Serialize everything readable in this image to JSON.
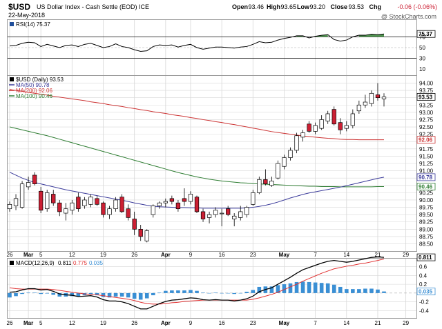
{
  "header": {
    "symbol": "$USD",
    "name": "US Dollar Index - Cash Settle (EOD) ICE",
    "date": "22-May-2018",
    "open_label": "Open",
    "open": "93.46",
    "high_label": "High",
    "high": "93.65",
    "low_label": "Low",
    "low": "93.20",
    "close_label": "Close",
    "close": "93.53",
    "chg_label": "Chg",
    "chg": "-0.06 (-0.06%)",
    "watermark": "@ StockCharts.com"
  },
  "colors": {
    "up": "#ffffff",
    "down": "#cc1f33",
    "ma50": "#3a3a9a",
    "ma200": "#cc3333",
    "ma100": "#2e7d32",
    "rsi_fill": "#3d8a3d",
    "macd_line": "#000000",
    "signal_line": "#e03030",
    "histogram": "#3a8fd4",
    "grid": "#d8d8d8"
  },
  "chart_data": {
    "type": "candlestick",
    "x_tick_labels": [
      "26",
      "Mar",
      "5",
      "12",
      "19",
      "26",
      "Apr",
      "9",
      "16",
      "23",
      "May",
      "7",
      "14",
      "21",
      "29"
    ],
    "bold_tick_labels": [
      "Mar",
      "Apr",
      "May"
    ],
    "price_panel": {
      "legend": [
        {
          "label": "$USD (Daily) 93.53",
          "color": "#000000"
        },
        {
          "label": "MA(50) 90.78",
          "color": "#3a3a9a"
        },
        {
          "label": "MA(200) 92.06",
          "color": "#cc3333"
        },
        {
          "label": "MA(100) 90.46",
          "color": "#2e7d32"
        }
      ],
      "ylim": [
        88.3,
        94.2
      ],
      "y_ticks": [
        "94.00",
        "93.75",
        "93.50",
        "93.25",
        "93.00",
        "92.75",
        "92.50",
        "92.25",
        "92.00",
        "91.75",
        "91.50",
        "91.25",
        "91.00",
        "90.75",
        "90.50",
        "90.25",
        "90.00",
        "89.75",
        "89.50",
        "89.25",
        "89.00",
        "88.75",
        "88.50"
      ],
      "last_labels": [
        {
          "value": 93.53,
          "text": "93.53",
          "color": "#000000"
        },
        {
          "value": 92.06,
          "text": "92.06",
          "color": "#cc3333"
        },
        {
          "value": 90.78,
          "text": "90.78",
          "color": "#3a3a9a"
        },
        {
          "value": 90.46,
          "text": "90.46",
          "color": "#2e7d32"
        }
      ],
      "candles": [
        {
          "o": 89.7,
          "h": 89.95,
          "l": 89.6,
          "c": 89.85
        },
        {
          "o": 89.8,
          "h": 90.2,
          "l": 89.65,
          "c": 90.05
        },
        {
          "o": 89.75,
          "h": 90.65,
          "l": 89.7,
          "c": 90.55
        },
        {
          "o": 90.45,
          "h": 90.8,
          "l": 90.35,
          "c": 90.6
        },
        {
          "o": 90.85,
          "h": 90.95,
          "l": 90.5,
          "c": 90.55
        },
        {
          "o": 90.3,
          "h": 90.45,
          "l": 89.55,
          "c": 89.65
        },
        {
          "o": 89.7,
          "h": 90.35,
          "l": 89.6,
          "c": 90.25
        },
        {
          "o": 90.2,
          "h": 90.35,
          "l": 89.8,
          "c": 89.9
        },
        {
          "o": 89.9,
          "h": 90.0,
          "l": 89.45,
          "c": 89.6
        },
        {
          "o": 89.55,
          "h": 89.9,
          "l": 89.3,
          "c": 89.7
        },
        {
          "o": 89.65,
          "h": 90.0,
          "l": 89.5,
          "c": 89.9
        },
        {
          "o": 90.1,
          "h": 90.25,
          "l": 89.6,
          "c": 89.7
        },
        {
          "o": 89.8,
          "h": 90.1,
          "l": 89.7,
          "c": 90.0
        },
        {
          "o": 89.85,
          "h": 90.2,
          "l": 89.75,
          "c": 90.1
        },
        {
          "o": 90.05,
          "h": 90.15,
          "l": 89.8,
          "c": 89.85
        },
        {
          "o": 89.9,
          "h": 89.95,
          "l": 89.4,
          "c": 89.5
        },
        {
          "o": 89.5,
          "h": 89.8,
          "l": 89.35,
          "c": 89.7
        },
        {
          "o": 89.7,
          "h": 90.1,
          "l": 89.6,
          "c": 90.0
        },
        {
          "o": 90.1,
          "h": 90.2,
          "l": 89.55,
          "c": 89.6
        },
        {
          "o": 89.7,
          "h": 89.85,
          "l": 89.3,
          "c": 89.4
        },
        {
          "o": 89.35,
          "h": 89.6,
          "l": 88.8,
          "c": 89.0
        },
        {
          "o": 89.0,
          "h": 89.15,
          "l": 88.6,
          "c": 88.75
        },
        {
          "o": 88.6,
          "h": 89.0,
          "l": 88.55,
          "c": 88.95
        },
        {
          "o": 89.5,
          "h": 89.85,
          "l": 89.4,
          "c": 89.8
        },
        {
          "o": 89.8,
          "h": 89.95,
          "l": 89.7,
          "c": 89.9
        },
        {
          "o": 89.9,
          "h": 90.05,
          "l": 89.75,
          "c": 89.95
        },
        {
          "o": 90.05,
          "h": 90.15,
          "l": 89.85,
          "c": 89.95
        },
        {
          "o": 89.9,
          "h": 90.0,
          "l": 89.6,
          "c": 89.7
        },
        {
          "o": 90.05,
          "h": 90.4,
          "l": 89.8,
          "c": 89.95
        },
        {
          "o": 89.95,
          "h": 90.3,
          "l": 89.85,
          "c": 90.2
        },
        {
          "o": 90.1,
          "h": 90.15,
          "l": 89.55,
          "c": 89.6
        },
        {
          "o": 89.6,
          "h": 89.7,
          "l": 89.25,
          "c": 89.35
        },
        {
          "o": 89.4,
          "h": 89.6,
          "l": 89.2,
          "c": 89.5
        },
        {
          "o": 89.5,
          "h": 89.75,
          "l": 89.4,
          "c": 89.65
        },
        {
          "o": 89.55,
          "h": 89.7,
          "l": 89.1,
          "c": 89.55
        },
        {
          "o": 89.7,
          "h": 89.8,
          "l": 89.45,
          "c": 89.5
        },
        {
          "o": 89.35,
          "h": 89.55,
          "l": 89.1,
          "c": 89.45
        },
        {
          "o": 89.4,
          "h": 89.8,
          "l": 89.3,
          "c": 89.6
        },
        {
          "o": 89.5,
          "h": 89.8,
          "l": 89.4,
          "c": 89.75
        },
        {
          "o": 89.85,
          "h": 90.35,
          "l": 89.8,
          "c": 90.25
        },
        {
          "o": 90.25,
          "h": 90.8,
          "l": 90.2,
          "c": 90.7
        },
        {
          "o": 90.7,
          "h": 91.05,
          "l": 90.5,
          "c": 90.55
        },
        {
          "o": 90.5,
          "h": 90.8,
          "l": 90.45,
          "c": 90.65
        },
        {
          "o": 90.75,
          "h": 91.35,
          "l": 90.7,
          "c": 91.25
        },
        {
          "o": 91.15,
          "h": 91.55,
          "l": 91.05,
          "c": 91.45
        },
        {
          "o": 91.45,
          "h": 91.8,
          "l": 91.35,
          "c": 91.7
        },
        {
          "o": 91.7,
          "h": 92.3,
          "l": 91.6,
          "c": 92.2
        },
        {
          "o": 92.15,
          "h": 92.4,
          "l": 92.0,
          "c": 92.3
        },
        {
          "o": 92.6,
          "h": 92.7,
          "l": 92.3,
          "c": 92.35
        },
        {
          "o": 92.35,
          "h": 92.65,
          "l": 92.25,
          "c": 92.55
        },
        {
          "o": 92.45,
          "h": 92.9,
          "l": 92.4,
          "c": 92.75
        },
        {
          "o": 92.7,
          "h": 93.05,
          "l": 92.6,
          "c": 92.95
        },
        {
          "o": 93.1,
          "h": 93.2,
          "l": 92.55,
          "c": 92.6
        },
        {
          "o": 92.65,
          "h": 92.8,
          "l": 92.25,
          "c": 92.4
        },
        {
          "o": 92.45,
          "h": 92.7,
          "l": 92.35,
          "c": 92.55
        },
        {
          "o": 92.55,
          "h": 93.1,
          "l": 92.45,
          "c": 92.95
        },
        {
          "o": 93.05,
          "h": 93.4,
          "l": 92.95,
          "c": 93.25
        },
        {
          "o": 93.25,
          "h": 93.6,
          "l": 93.15,
          "c": 93.35
        },
        {
          "o": 93.3,
          "h": 93.75,
          "l": 93.2,
          "c": 93.65
        },
        {
          "o": 93.6,
          "h": 94.0,
          "l": 93.4,
          "c": 93.5
        },
        {
          "o": 93.46,
          "h": 93.65,
          "l": 93.2,
          "c": 93.53
        }
      ],
      "ma200": [
        93.78,
        93.75,
        93.72,
        93.68,
        93.65,
        93.62,
        93.59,
        93.55,
        93.52,
        93.49,
        93.46,
        93.43,
        93.4,
        93.36,
        93.33,
        93.3,
        93.26,
        93.23,
        93.2,
        93.16,
        93.13,
        93.09,
        93.06,
        93.02,
        92.99,
        92.96,
        92.92,
        92.89,
        92.86,
        92.82,
        92.79,
        92.75,
        92.72,
        92.68,
        92.65,
        92.61,
        92.58,
        92.54,
        92.5,
        92.46,
        92.42,
        92.38,
        92.34,
        92.31,
        92.28,
        92.25,
        92.22,
        92.19,
        92.17,
        92.15,
        92.13,
        92.11,
        92.1,
        92.08,
        92.07,
        92.07,
        92.06,
        92.06,
        92.06,
        92.06,
        92.06
      ],
      "ma100": [
        92.5,
        92.45,
        92.4,
        92.35,
        92.3,
        92.25,
        92.2,
        92.14,
        92.08,
        92.02,
        91.96,
        91.9,
        91.84,
        91.78,
        91.72,
        91.66,
        91.6,
        91.54,
        91.48,
        91.42,
        91.36,
        91.3,
        91.24,
        91.18,
        91.12,
        91.06,
        91.0,
        90.94,
        90.89,
        90.84,
        90.79,
        90.75,
        90.71,
        90.68,
        90.65,
        90.63,
        90.61,
        90.59,
        90.58,
        90.56,
        90.55,
        90.54,
        90.53,
        90.52,
        90.51,
        90.5,
        90.49,
        90.48,
        90.47,
        90.47,
        90.46,
        90.46,
        90.46,
        90.45,
        90.45,
        90.45,
        90.45,
        90.45,
        90.45,
        90.46,
        90.46
      ],
      "ma50": [
        90.95,
        90.85,
        90.75,
        90.67,
        90.6,
        90.55,
        90.5,
        90.45,
        90.4,
        90.35,
        90.31,
        90.27,
        90.23,
        90.19,
        90.15,
        90.11,
        90.07,
        90.03,
        89.99,
        89.95,
        89.9,
        89.86,
        89.82,
        89.79,
        89.77,
        89.76,
        89.75,
        89.74,
        89.74,
        89.73,
        89.73,
        89.72,
        89.72,
        89.72,
        89.72,
        89.72,
        89.72,
        89.72,
        89.73,
        89.75,
        89.78,
        89.82,
        89.87,
        89.93,
        90.0,
        90.07,
        90.13,
        90.19,
        90.24,
        90.28,
        90.32,
        90.36,
        90.4,
        90.44,
        90.49,
        90.54,
        90.59,
        90.64,
        90.69,
        90.74,
        90.78
      ]
    },
    "rsi_panel": {
      "label": "RSI(14) 75.37",
      "ylim": [
        0,
        100
      ],
      "y_ticks": [
        "75.37",
        "70",
        "50",
        "30",
        "10"
      ],
      "overbought": 70,
      "oversold": 30,
      "values": [
        53,
        54,
        58,
        60,
        59,
        52,
        56,
        53,
        50,
        54,
        55,
        52,
        56,
        58,
        54,
        50,
        52,
        57,
        52,
        50,
        46,
        43,
        44,
        52,
        55,
        54,
        55,
        51,
        54,
        56,
        50,
        47,
        49,
        51,
        51,
        50,
        49,
        51,
        52,
        56,
        61,
        59,
        60,
        64,
        67,
        69,
        72,
        72,
        68,
        71,
        73,
        74,
        65,
        62,
        64,
        70,
        73,
        73,
        75,
        74,
        75.37
      ]
    },
    "macd_panel": {
      "label": "MACD(12,26,9)",
      "macd_value": "0.811",
      "signal_value": "0.775",
      "hist_value": "0.035",
      "ylim": [
        -0.55,
        0.75
      ],
      "y_ticks": [
        "0.6",
        "0.4",
        "0.2",
        "0.0",
        "-0.2",
        "-0.4"
      ],
      "last_label": "0.811",
      "hist_last_label": "0.035",
      "macd": [
        0.02,
        0.03,
        0.07,
        0.1,
        0.1,
        0.07,
        0.08,
        0.04,
        -0.02,
        -0.04,
        -0.05,
        -0.08,
        -0.07,
        -0.06,
        -0.09,
        -0.15,
        -0.18,
        -0.18,
        -0.2,
        -0.24,
        -0.3,
        -0.36,
        -0.36,
        -0.3,
        -0.24,
        -0.19,
        -0.16,
        -0.15,
        -0.13,
        -0.11,
        -0.12,
        -0.15,
        -0.16,
        -0.15,
        -0.16,
        -0.16,
        -0.18,
        -0.16,
        -0.13,
        -0.07,
        0.03,
        0.08,
        0.12,
        0.2,
        0.28,
        0.36,
        0.45,
        0.53,
        0.58,
        0.63,
        0.68,
        0.72,
        0.74,
        0.72,
        0.7,
        0.72,
        0.75,
        0.78,
        0.81,
        0.82,
        0.811
      ],
      "signal": [
        0.12,
        0.1,
        0.09,
        0.09,
        0.09,
        0.09,
        0.09,
        0.08,
        0.06,
        0.04,
        0.02,
        0.0,
        -0.02,
        -0.03,
        -0.04,
        -0.06,
        -0.08,
        -0.1,
        -0.12,
        -0.14,
        -0.17,
        -0.21,
        -0.24,
        -0.25,
        -0.25,
        -0.24,
        -0.22,
        -0.21,
        -0.19,
        -0.18,
        -0.17,
        -0.16,
        -0.16,
        -0.16,
        -0.16,
        -0.16,
        -0.16,
        -0.16,
        -0.16,
        -0.14,
        -0.11,
        -0.07,
        -0.03,
        0.02,
        0.08,
        0.14,
        0.2,
        0.27,
        0.33,
        0.39,
        0.45,
        0.5,
        0.55,
        0.58,
        0.61,
        0.63,
        0.66,
        0.68,
        0.71,
        0.74,
        0.775
      ]
    }
  }
}
